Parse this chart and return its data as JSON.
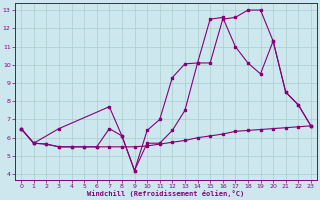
{
  "background_color": "#cce8ee",
  "line_color": "#880077",
  "grid_color": "#aacccc",
  "xlabel": "Windchill (Refroidissement éolien,°C)",
  "xlim_min": -0.5,
  "xlim_max": 23.5,
  "ylim_min": 3.7,
  "ylim_max": 13.4,
  "xticks": [
    0,
    1,
    2,
    3,
    4,
    5,
    6,
    7,
    8,
    9,
    10,
    11,
    12,
    13,
    14,
    15,
    16,
    17,
    18,
    19,
    20,
    21,
    22,
    23
  ],
  "yticks": [
    4,
    5,
    6,
    7,
    8,
    9,
    10,
    11,
    12,
    13
  ],
  "line1_x": [
    0,
    1,
    2,
    3,
    4,
    5,
    6,
    7,
    8,
    9,
    10,
    11,
    12,
    13,
    14,
    15,
    16,
    17,
    18,
    19,
    20,
    21,
    22,
    23
  ],
  "line1_y": [
    6.5,
    5.7,
    5.65,
    5.5,
    5.5,
    5.5,
    5.5,
    5.5,
    5.5,
    5.5,
    5.55,
    5.65,
    5.75,
    5.85,
    6.0,
    6.1,
    6.2,
    6.35,
    6.4,
    6.45,
    6.5,
    6.55,
    6.6,
    6.65
  ],
  "line2_x": [
    0,
    1,
    3,
    7,
    8,
    9,
    10,
    11,
    12,
    13,
    14,
    15,
    16,
    17,
    18,
    19,
    20,
    21,
    22,
    23
  ],
  "line2_y": [
    6.5,
    5.7,
    6.5,
    7.7,
    6.1,
    4.2,
    5.7,
    5.7,
    6.4,
    7.5,
    10.1,
    10.1,
    12.5,
    12.6,
    13.0,
    13.0,
    11.3,
    8.5,
    7.8,
    6.65
  ],
  "line3_x": [
    0,
    1,
    2,
    3,
    4,
    5,
    6,
    7,
    8,
    9,
    10,
    11,
    12,
    13,
    14,
    15,
    16,
    17,
    18,
    19,
    20,
    21,
    22,
    23
  ],
  "line3_y": [
    6.5,
    5.7,
    5.65,
    5.5,
    5.5,
    5.5,
    5.5,
    6.5,
    6.1,
    4.2,
    6.4,
    7.0,
    9.3,
    10.05,
    10.1,
    12.5,
    12.6,
    11.0,
    10.1,
    9.5,
    11.3,
    8.5,
    7.8,
    6.65
  ]
}
